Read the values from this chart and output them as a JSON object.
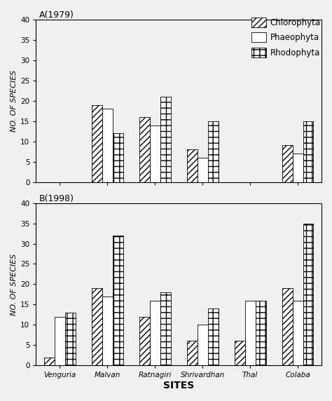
{
  "sites": [
    "Venguria",
    "Malvan",
    "Ratnagiri",
    "Shrivardhan",
    "Thal",
    "Colaba"
  ],
  "panel_A_title": "A(1979)",
  "panel_B_title": "B(1998)",
  "legend_labels": [
    "Chlorophyta",
    "Phaeophyta",
    "Rhodophyta"
  ],
  "A_chlorophyta": [
    0,
    19,
    16,
    8,
    0,
    9
  ],
  "A_phaeophyta": [
    0,
    18,
    14,
    6,
    0,
    7
  ],
  "A_rhodophyta": [
    0,
    12,
    21,
    15,
    0,
    15
  ],
  "B_chlorophyta": [
    2,
    19,
    12,
    6,
    6,
    19
  ],
  "B_phaeophyta": [
    12,
    17,
    16,
    10,
    16,
    16
  ],
  "B_rhodophyta": [
    13,
    32,
    18,
    14,
    16,
    35
  ],
  "ylim": [
    0,
    40
  ],
  "yticks": [
    0,
    5,
    10,
    15,
    20,
    25,
    30,
    35,
    40
  ],
  "ylabel": "NO. OF SPECIES",
  "xlabel": "SITES",
  "bar_width": 0.22,
  "hatch_chlorophyta": "////",
  "hatch_phaeophyta": "",
  "hatch_rhodophyta": "++",
  "edgecolor": "#000000",
  "facecolor": "#ffffff",
  "background_color": "#f0f0f0",
  "title_fontsize": 9,
  "label_fontsize": 8,
  "tick_fontsize": 7.5,
  "legend_fontsize": 8.5
}
